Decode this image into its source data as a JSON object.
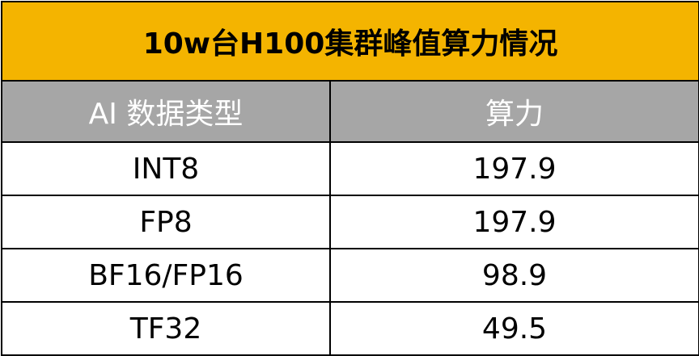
{
  "table": {
    "title": "10w台H100集群峰值算力情况",
    "headers": [
      "AI 数据类型",
      "算力"
    ],
    "rows": [
      [
        "INT8",
        "197.9"
      ],
      [
        "FP8",
        "197.9"
      ],
      [
        "BF16/FP16",
        "98.9"
      ],
      [
        "TF32",
        "49.5"
      ]
    ]
  },
  "colors": {
    "title_bg": "#f4b400",
    "header_bg": "#a6a6a6",
    "header_text": "#ffffff",
    "border": "#000000"
  }
}
